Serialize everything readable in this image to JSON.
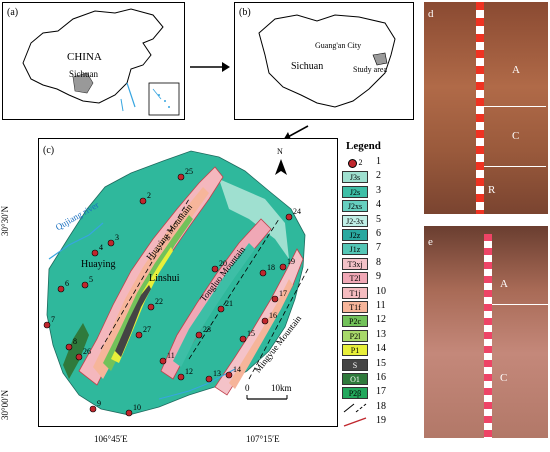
{
  "panels": {
    "a": {
      "tag": "(a)",
      "country": "CHINA",
      "province": "Sichuan"
    },
    "b": {
      "tag": "(b)",
      "province": "Sichuan",
      "city": "Guang'an City",
      "study_area": "Study area"
    },
    "c": {
      "tag": "(c)",
      "north": "N",
      "lat_top": "30°30′N",
      "lat_bottom": "30°00′N",
      "lon_left": "106°45′E",
      "lon_right": "107°15′E",
      "scale_zero": "0",
      "scale_label": "10km",
      "towns": [
        "Huaying",
        "Linshui"
      ],
      "river": "Qujiang river",
      "mountains": [
        "Huaying Mountain",
        "Tongluo Mountain",
        "Mingyue Mountain"
      ],
      "sites": [
        "2",
        "3",
        "4",
        "5",
        "6",
        "7",
        "8",
        "9",
        "10",
        "11",
        "12",
        "13",
        "14",
        "15",
        "16",
        "17",
        "18",
        "19",
        "20",
        "21",
        "22",
        "23",
        "24",
        "25",
        "26",
        "27"
      ]
    },
    "d": {
      "tag": "d",
      "horizons": [
        "A",
        "C",
        "R"
      ]
    },
    "e": {
      "tag": "e",
      "horizons": [
        "A",
        "C"
      ]
    }
  },
  "legend": {
    "title": "Legend",
    "items": [
      {
        "num": "1",
        "sym": "2",
        "color": "#ffffff"
      },
      {
        "num": "2",
        "sym": "J3s",
        "color": "#9fe0d0"
      },
      {
        "num": "3",
        "sym": "J2s",
        "color": "#3dbea6"
      },
      {
        "num": "4",
        "sym": "J2xs",
        "color": "#66cfc0"
      },
      {
        "num": "5",
        "sym": "J2-3x",
        "color": "#bfeee6"
      },
      {
        "num": "6",
        "sym": "J2z",
        "color": "#2aa8a0"
      },
      {
        "num": "7",
        "sym": "J1z",
        "color": "#54c6b6"
      },
      {
        "num": "8",
        "sym": "T3xj",
        "color": "#f4c2c8"
      },
      {
        "num": "9",
        "sym": "T2l",
        "color": "#f0a8b6"
      },
      {
        "num": "10",
        "sym": "T1j",
        "color": "#f5bcc0"
      },
      {
        "num": "11",
        "sym": "T1f",
        "color": "#f6b59a"
      },
      {
        "num": "12",
        "sym": "P2c",
        "color": "#72c25a"
      },
      {
        "num": "13",
        "sym": "P2l",
        "color": "#a8d86a"
      },
      {
        "num": "14",
        "sym": "P1",
        "color": "#e8ef3a"
      },
      {
        "num": "15",
        "sym": "S",
        "color": "#444444"
      },
      {
        "num": "16",
        "sym": "O1",
        "color": "#2f7a3c"
      },
      {
        "num": "17",
        "sym": "P2β",
        "color": "#22a85c"
      },
      {
        "num": "18",
        "sym": "",
        "color": "#ffffff"
      },
      {
        "num": "19",
        "sym": "",
        "color": "#ffffff"
      }
    ]
  }
}
